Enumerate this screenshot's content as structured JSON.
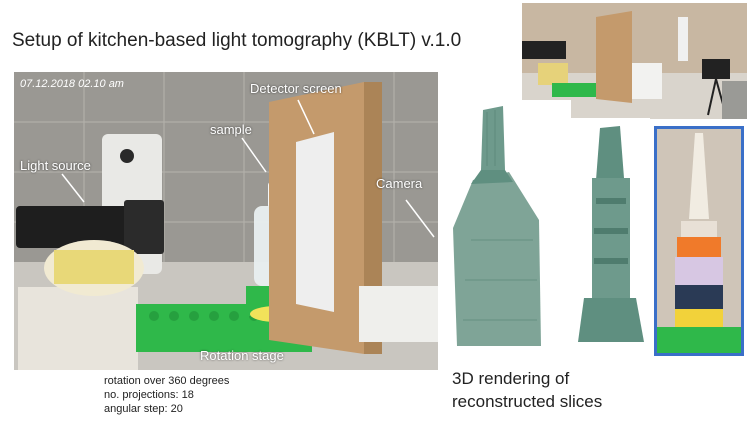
{
  "title": "Setup of kitchen-based light tomography (KBLT) v.1.0",
  "photo": {
    "timestamp": "07.12.2018 02.10 am",
    "labels": {
      "light_source": "Light source",
      "sample": "sample",
      "detector_screen": "Detector screen",
      "camera": "Camera",
      "rotation_stage": "Rotation stage"
    }
  },
  "parameters": [
    "rotation over 360 degrees",
    "no. projections: 18",
    "angular step: 20"
  ],
  "caption": [
    "3D rendering of",
    "reconstructed slices"
  ],
  "colors": {
    "accent_border": "#3a6fc8",
    "render_green": "#5f8f80",
    "lego_green": "#2fb84a"
  }
}
